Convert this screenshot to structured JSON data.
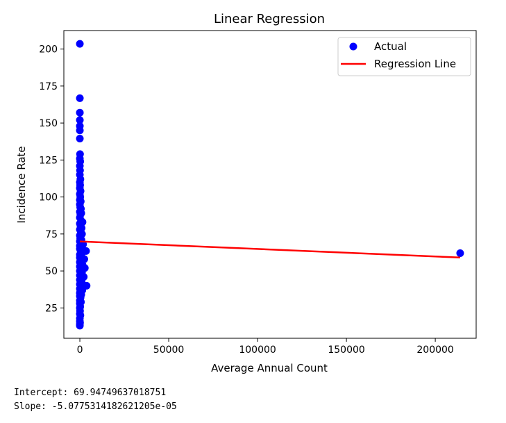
{
  "chart_data": {
    "type": "scatter",
    "title": "Linear Regression",
    "xlabel": "Average Annual Count",
    "ylabel": "Incidence Rate",
    "xlim": [
      -9000,
      223000
    ],
    "ylim": [
      4.5,
      212.5
    ],
    "xticks": [
      0,
      50000,
      100000,
      150000,
      200000
    ],
    "yticks": [
      25,
      50,
      75,
      100,
      125,
      150,
      175,
      200
    ],
    "grid": false,
    "legend": {
      "placement": "top-right",
      "entries": [
        "Actual",
        "Regression Line"
      ]
    },
    "series": [
      {
        "name": "Actual",
        "kind": "scatter",
        "color": "#0000ff",
        "points": [
          [
            0,
            203.5
          ],
          [
            0,
            166.8
          ],
          [
            0,
            157
          ],
          [
            0,
            152
          ],
          [
            0,
            148
          ],
          [
            0,
            145
          ],
          [
            0,
            139.5
          ],
          [
            100,
            129
          ],
          [
            0,
            126
          ],
          [
            200,
            124
          ],
          [
            0,
            121
          ],
          [
            100,
            118
          ],
          [
            0,
            115
          ],
          [
            300,
            112
          ],
          [
            0,
            110
          ],
          [
            150,
            108
          ],
          [
            0,
            106
          ],
          [
            400,
            104
          ],
          [
            0,
            102
          ],
          [
            250,
            100
          ],
          [
            0,
            98
          ],
          [
            500,
            97
          ],
          [
            0,
            95
          ],
          [
            200,
            93
          ],
          [
            600,
            92
          ],
          [
            0,
            90
          ],
          [
            800,
            89
          ],
          [
            300,
            88
          ],
          [
            0,
            86
          ],
          [
            700,
            84
          ],
          [
            1500,
            83
          ],
          [
            0,
            82
          ],
          [
            400,
            80
          ],
          [
            1000,
            79
          ],
          [
            0,
            78
          ],
          [
            600,
            76
          ],
          [
            1200,
            75
          ],
          [
            0,
            74
          ],
          [
            200,
            72
          ],
          [
            900,
            71
          ],
          [
            0,
            70
          ],
          [
            400,
            69
          ],
          [
            1800,
            68
          ],
          [
            0,
            67
          ],
          [
            700,
            66
          ],
          [
            0,
            65
          ],
          [
            300,
            64
          ],
          [
            3500,
            63.5
          ],
          [
            1100,
            62
          ],
          [
            0,
            61
          ],
          [
            500,
            60
          ],
          [
            0,
            59
          ],
          [
            2500,
            58
          ],
          [
            800,
            57
          ],
          [
            0,
            56
          ],
          [
            300,
            55
          ],
          [
            1500,
            54
          ],
          [
            0,
            53
          ],
          [
            2800,
            52
          ],
          [
            600,
            51
          ],
          [
            0,
            50
          ],
          [
            1200,
            49
          ],
          [
            400,
            48
          ],
          [
            0,
            47
          ],
          [
            2200,
            46
          ],
          [
            700,
            45
          ],
          [
            0,
            44
          ],
          [
            1000,
            43
          ],
          [
            300,
            42
          ],
          [
            0,
            41
          ],
          [
            3800,
            40
          ],
          [
            500,
            39.5
          ],
          [
            0,
            38
          ],
          [
            1400,
            37
          ],
          [
            200,
            36
          ],
          [
            0,
            35
          ],
          [
            800,
            34
          ],
          [
            0,
            33
          ],
          [
            400,
            32
          ],
          [
            0,
            30
          ],
          [
            600,
            29
          ],
          [
            0,
            28
          ],
          [
            200,
            26
          ],
          [
            0,
            25
          ],
          [
            100,
            23
          ],
          [
            0,
            21
          ],
          [
            300,
            20
          ],
          [
            0,
            18
          ],
          [
            0,
            16
          ],
          [
            100,
            15
          ],
          [
            0,
            14
          ],
          [
            0,
            13
          ],
          [
            214000,
            62
          ]
        ]
      },
      {
        "name": "Regression Line",
        "kind": "line",
        "color": "#ff0000",
        "intercept": 69.94749637018751,
        "slope": -5.0775314182621205e-05,
        "x_range": [
          0,
          214000
        ]
      }
    ]
  },
  "output": {
    "intercept_line": "Intercept: 69.94749637018751",
    "slope_line": "Slope: -5.0775314182621205e-05"
  }
}
